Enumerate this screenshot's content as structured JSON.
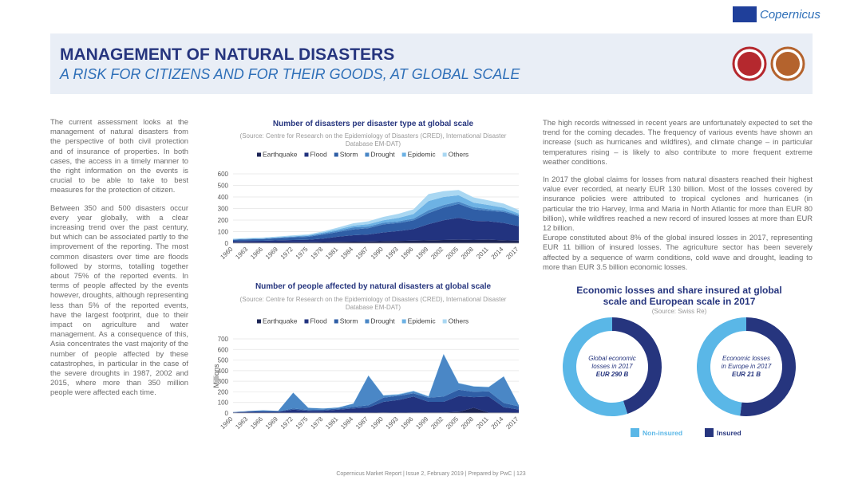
{
  "logo": "Copernicus",
  "header": {
    "title": "MANAGEMENT OF NATURAL DISASTERS",
    "subtitle": "A RISK FOR CITIZENS AND FOR THEIR GOODS, AT GLOBAL SCALE"
  },
  "left_text": [
    "The current assessment looks at the management of natural disasters from the perspective of both civil protection and of insurance of properties. In both cases, the access in a timely manner to the right information on the events is crucial to be able to take to best measures for the protection of citizen.",
    "Between 350 and 500 disasters occur every year globally, with a clear increasing trend over the past century, but which can be associated partly to the improvement of the reporting. The most common disasters over time are floods followed by storms, totalling together about 75% of the reported events. In terms of people affected by the events however, droughts, although representing less than 5% of the reported events, have the largest footprint, due to their impact on agriculture and water management. As a consequence of this, Asia concentrates the vast majority of the number of people affected by these catastrophes, in particular in the case of the severe droughts in 1987, 2002 and 2015, where more than 350 million people were affected each time."
  ],
  "right_text": [
    "The high records witnessed in recent years are unfortunately expected to set the trend for the coming decades. The frequency of various events have shown an increase (such as hurricanes and wildfires), and climate change – in particular temperatures rising – is likely to also contribute to more frequent extreme weather conditions.",
    "In 2017 the global claims for losses from natural disasters reached their highest value ever recorded, at nearly EUR 130 billion. Most of the losses covered by insurance policies were attributed to tropical cyclones and hurricanes (in particular the trio Harvey, Irma and Maria in North Atlantic for more than EUR 80 billion), while wildfires reached a new record of insured losses at more than EUR 12 billion.",
    "Europe constituted about 8% of the global insured losses in 2017, representing EUR 11 billion of insured losses. The agriculture sector has been severely affected by a sequence of warm conditions, cold wave and drought, leading to more than EUR 3.5 billion economic losses."
  ],
  "footer": "Copernicus Market Report | Issue 2, February 2019 | Prepared by PwC | 123",
  "chart_data": [
    {
      "type": "area",
      "stacked": true,
      "title": "Number of disasters per disaster type at global scale",
      "subtitle": "(Source: Centre for Research on the Epidemiology of Disasters (CRED), International Disaster Database EM-DAT)",
      "x": [
        1960,
        1963,
        1966,
        1969,
        1972,
        1975,
        1978,
        1981,
        1984,
        1987,
        1990,
        1993,
        1996,
        1999,
        2002,
        2005,
        2008,
        2011,
        2014,
        2017
      ],
      "xlim": [
        1960,
        2017
      ],
      "ylim": [
        0,
        600
      ],
      "yticks": [
        0,
        100,
        200,
        300,
        400,
        500,
        600
      ],
      "grid": true,
      "series": [
        {
          "name": "Earthquake",
          "color": "#1c2455",
          "values": [
            5,
            6,
            6,
            7,
            8,
            8,
            10,
            12,
            14,
            15,
            18,
            20,
            22,
            25,
            28,
            30,
            28,
            30,
            25,
            22
          ]
        },
        {
          "name": "Flood",
          "color": "#22337f",
          "values": [
            12,
            14,
            15,
            18,
            20,
            22,
            30,
            45,
            55,
            60,
            75,
            85,
            100,
            140,
            170,
            190,
            165,
            160,
            150,
            125
          ]
        },
        {
          "name": "Storm",
          "color": "#2f5ea6",
          "values": [
            12,
            14,
            15,
            18,
            22,
            25,
            35,
            40,
            50,
            55,
            70,
            70,
            75,
            95,
            110,
            120,
            100,
            90,
            95,
            85
          ]
        },
        {
          "name": "Drought",
          "color": "#4a87c6",
          "values": [
            3,
            3,
            4,
            5,
            6,
            8,
            10,
            12,
            18,
            15,
            15,
            14,
            16,
            25,
            22,
            20,
            18,
            15,
            12,
            10
          ]
        },
        {
          "name": "Epidemic",
          "color": "#6db2e4",
          "values": [
            3,
            3,
            3,
            4,
            4,
            5,
            8,
            12,
            15,
            20,
            20,
            30,
            40,
            80,
            70,
            55,
            40,
            35,
            25,
            15
          ]
        },
        {
          "name": "Others",
          "color": "#a9d7f2",
          "values": [
            5,
            5,
            6,
            6,
            8,
            8,
            10,
            15,
            20,
            25,
            30,
            35,
            40,
            60,
            50,
            45,
            45,
            40,
            35,
            30
          ]
        }
      ]
    },
    {
      "type": "area",
      "stacked": true,
      "title": "Number of people affected by natural disasters at global scale",
      "subtitle": "(Source: Centre for Research on the Epidemiology of Disasters (CRED), International Disaster Database EM-DAT)",
      "y_label": "Millions",
      "x": [
        1960,
        1963,
        1966,
        1969,
        1972,
        1975,
        1978,
        1981,
        1984,
        1987,
        1990,
        1993,
        1996,
        1999,
        2002,
        2005,
        2008,
        2011,
        2014,
        2017
      ],
      "xlim": [
        1960,
        2017
      ],
      "ylim": [
        0,
        700
      ],
      "yticks": [
        0,
        100,
        200,
        300,
        400,
        500,
        600,
        700
      ],
      "grid": true,
      "series": [
        {
          "name": "Earthquake",
          "color": "#1c2455",
          "values": [
            1,
            1,
            1,
            1,
            2,
            1,
            2,
            2,
            3,
            3,
            5,
            3,
            5,
            5,
            5,
            10,
            50,
            5,
            5,
            3
          ]
        },
        {
          "name": "Flood",
          "color": "#22337f",
          "values": [
            5,
            10,
            10,
            10,
            30,
            20,
            20,
            30,
            40,
            50,
            100,
            120,
            150,
            100,
            100,
            150,
            100,
            150,
            50,
            30
          ]
        },
        {
          "name": "Storm",
          "color": "#2f5ea6",
          "values": [
            2,
            3,
            5,
            5,
            10,
            8,
            10,
            10,
            15,
            20,
            40,
            40,
            30,
            40,
            50,
            60,
            50,
            50,
            40,
            30
          ]
        },
        {
          "name": "Drought",
          "color": "#4a87c6",
          "values": [
            1,
            5,
            10,
            5,
            150,
            20,
            10,
            10,
            30,
            280,
            20,
            10,
            20,
            10,
            400,
            60,
            50,
            40,
            250,
            10
          ]
        },
        {
          "name": "Epidemic",
          "color": "#6db2e4",
          "values": [
            0,
            0,
            0,
            0,
            1,
            1,
            1,
            1,
            1,
            2,
            2,
            2,
            3,
            3,
            2,
            2,
            1,
            1,
            1,
            1
          ]
        },
        {
          "name": "Others",
          "color": "#a9d7f2",
          "values": [
            0,
            0,
            0,
            0,
            1,
            1,
            1,
            1,
            2,
            2,
            2,
            5,
            3,
            3,
            3,
            3,
            3,
            2,
            2,
            2
          ]
        }
      ]
    },
    {
      "type": "donut",
      "title": "Economic losses and share insured at global scale and European scale in 2017",
      "subtitle": "(Source: Swiss Re)",
      "categories": [
        "Non-insured",
        "Insured"
      ],
      "colors": [
        "#5ab7e7",
        "#26357e"
      ],
      "pies": [
        {
          "center_label": [
            "Global economic",
            "losses in 2017",
            "EUR 290 B"
          ],
          "values": [
            55,
            45
          ]
        },
        {
          "center_label": [
            "Economic losses",
            "in Europe in 2017",
            "EUR 21 B"
          ],
          "values": [
            48,
            52
          ]
        }
      ]
    }
  ]
}
